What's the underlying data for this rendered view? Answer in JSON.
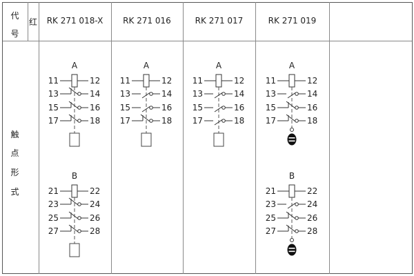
{
  "header": {
    "code_label_1": "代",
    "code_label_2": "号",
    "red_label": "红",
    "models": [
      "RK 271 018-X",
      "RK 271 016",
      "RK 271 017",
      "RK 271 019",
      ""
    ]
  },
  "row_label": [
    "触",
    "点",
    "形",
    "式"
  ],
  "columns": [
    {
      "diagrams": [
        {
          "label": "A",
          "coil": [
            "11",
            "12"
          ],
          "contacts": [
            {
              "l": "13",
              "r": "14",
              "type": "nc"
            },
            {
              "l": "15",
              "r": "16",
              "type": "nc"
            },
            {
              "l": "17",
              "r": "18",
              "type": "nc"
            }
          ],
          "actuator": "box"
        },
        {
          "label": "B",
          "coil": [
            "21",
            "22"
          ],
          "contacts": [
            {
              "l": "23",
              "r": "24",
              "type": "nc"
            },
            {
              "l": "25",
              "r": "26",
              "type": "nc"
            },
            {
              "l": "27",
              "r": "28",
              "type": "nc"
            }
          ],
          "actuator": "box"
        }
      ]
    },
    {
      "diagrams": [
        {
          "label": "A",
          "coil": [
            "11",
            "12"
          ],
          "contacts": [
            {
              "l": "13",
              "r": "14",
              "type": "no"
            },
            {
              "l": "15",
              "r": "16",
              "type": "no"
            },
            {
              "l": "17",
              "r": "18",
              "type": "nc"
            }
          ],
          "actuator": "box"
        }
      ]
    },
    {
      "diagrams": [
        {
          "label": "A",
          "coil": [
            "11",
            "12"
          ],
          "contacts": [
            {
              "l": "13",
              "r": "14",
              "type": "no"
            },
            {
              "l": "15",
              "r": "16",
              "type": "no"
            },
            {
              "l": "17",
              "r": "18",
              "type": "no"
            }
          ],
          "actuator": "box"
        }
      ]
    },
    {
      "diagrams": [
        {
          "label": "A",
          "coil": [
            "11",
            "12"
          ],
          "contacts": [
            {
              "l": "13",
              "r": "14",
              "type": "no"
            },
            {
              "l": "15",
              "r": "16",
              "type": "nc"
            },
            {
              "l": "17",
              "r": "18",
              "type": "nc"
            }
          ],
          "actuator": "knob"
        },
        {
          "label": "B",
          "coil": [
            "21",
            "22"
          ],
          "contacts": [
            {
              "l": "23",
              "r": "24",
              "type": "no"
            },
            {
              "l": "25",
              "r": "26",
              "type": "nc"
            },
            {
              "l": "27",
              "r": "28",
              "type": "nc"
            }
          ],
          "actuator": "knob"
        }
      ]
    }
  ]
}
